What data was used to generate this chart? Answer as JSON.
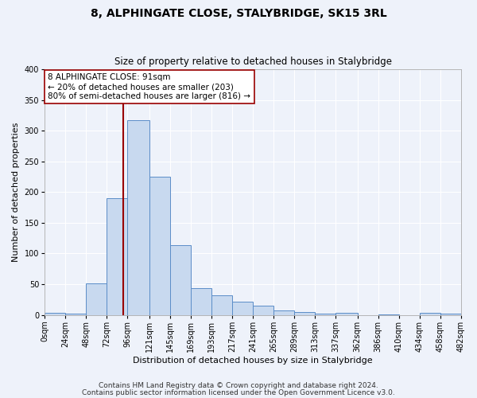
{
  "title": "8, ALPHINGATE CLOSE, STALYBRIDGE, SK15 3RL",
  "subtitle": "Size of property relative to detached houses in Stalybridge",
  "xlabel": "Distribution of detached houses by size in Stalybridge",
  "ylabel": "Number of detached properties",
  "bin_edges": [
    0,
    24,
    48,
    72,
    96,
    121,
    145,
    169,
    193,
    217,
    241,
    265,
    289,
    313,
    337,
    362,
    386,
    410,
    434,
    458,
    482
  ],
  "counts": [
    3,
    2,
    52,
    190,
    317,
    225,
    114,
    44,
    32,
    21,
    15,
    7,
    5,
    2,
    4,
    0,
    1,
    0,
    4,
    2
  ],
  "bar_color": "#c8d9ef",
  "bar_edge_color": "#5b8dc8",
  "property_line_x": 91,
  "property_line_color": "#990000",
  "annotation_text": "8 ALPHINGATE CLOSE: 91sqm\n← 20% of detached houses are smaller (203)\n80% of semi-detached houses are larger (816) →",
  "annotation_box_edgecolor": "#990000",
  "annotation_box_facecolor": "white",
  "ylim": [
    0,
    400
  ],
  "yticks": [
    0,
    50,
    100,
    150,
    200,
    250,
    300,
    350,
    400
  ],
  "xtick_labels": [
    "0sqm",
    "24sqm",
    "48sqm",
    "72sqm",
    "96sqm",
    "121sqm",
    "145sqm",
    "169sqm",
    "193sqm",
    "217sqm",
    "241sqm",
    "265sqm",
    "289sqm",
    "313sqm",
    "337sqm",
    "362sqm",
    "386sqm",
    "410sqm",
    "434sqm",
    "458sqm",
    "482sqm"
  ],
  "footer_line1": "Contains HM Land Registry data © Crown copyright and database right 2024.",
  "footer_line2": "Contains public sector information licensed under the Open Government Licence v3.0.",
  "background_color": "#eef2fa",
  "grid_color": "#ffffff",
  "title_fontsize": 10,
  "subtitle_fontsize": 8.5,
  "axis_label_fontsize": 8,
  "tick_fontsize": 7,
  "footer_fontsize": 6.5,
  "annotation_fontsize": 7.5
}
